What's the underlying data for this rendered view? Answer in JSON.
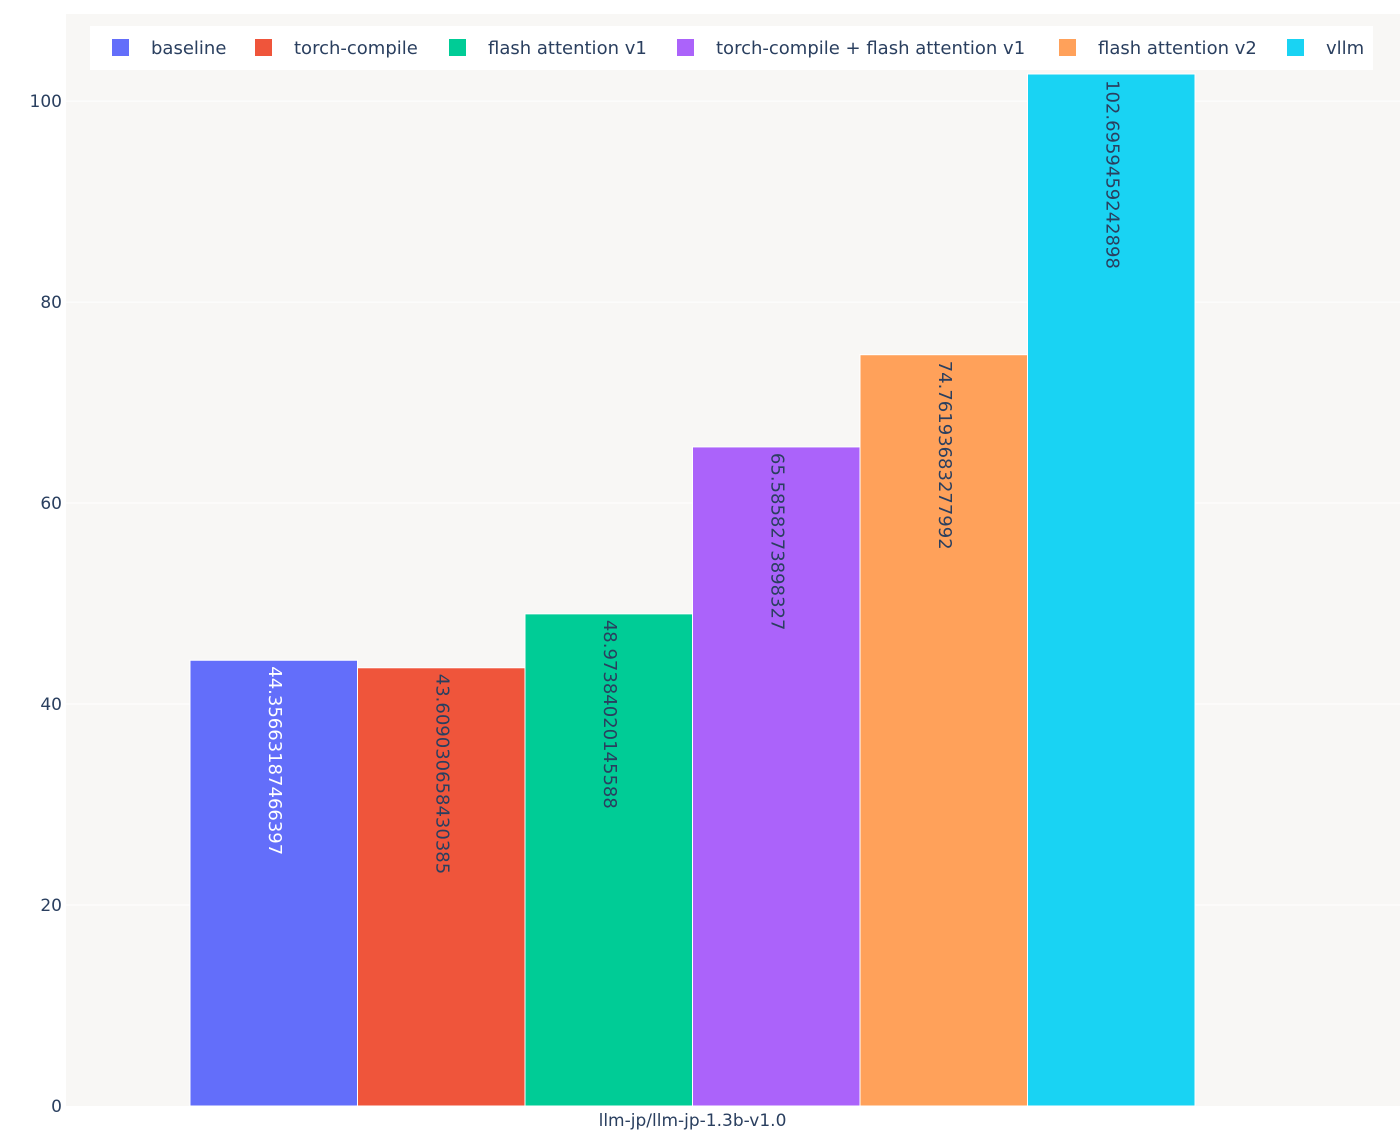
{
  "chart_data": {
    "type": "bar",
    "title": "",
    "xlabel": "",
    "ylabel": "",
    "categories": [
      "llm-jp/llm-jp-1.3b-v1.0"
    ],
    "ylim": [
      0,
      102.6959459242898
    ],
    "yticks": [
      0,
      20,
      40,
      60,
      80,
      100
    ],
    "grid": true,
    "legend_position": "top",
    "series": [
      {
        "name": "baseline",
        "values": [
          44.35663187466397
        ],
        "label": "44.35663187466397",
        "color": "#636efa",
        "label_color": "#ffffff"
      },
      {
        "name": "torch-compile",
        "values": [
          43.60903065843038
        ],
        "label": "43.6090306584303​85",
        "color": "#ef553b",
        "label_color": "#2a3f5f"
      },
      {
        "name": "flash attention v1",
        "values": [
          48.97384020145588
        ],
        "label": "48.97384020145588",
        "color": "#00cc96",
        "label_color": "#2a3f5f"
      },
      {
        "name": "torch-compile + flash attention v1",
        "values": [
          65.5858273898327
        ],
        "label": "65.5858273898327",
        "color": "#ab63fa",
        "label_color": "#2a3f5f"
      },
      {
        "name": "flash attention v2",
        "values": [
          74.7619368327799
        ],
        "label": "74.7619368327799​2",
        "color": "#ffa15a",
        "label_color": "#2a3f5f"
      },
      {
        "name": "vllm",
        "values": [
          102.6959459242898
        ],
        "label": "102.6959459242898",
        "color": "#19d3f3",
        "label_color": "#2a3f5f"
      }
    ],
    "plot_bg": "#f8f7f5",
    "grid_color": "#ffffff",
    "legend_bg": "#ffffff",
    "tick_color": "#2a3f5f"
  }
}
